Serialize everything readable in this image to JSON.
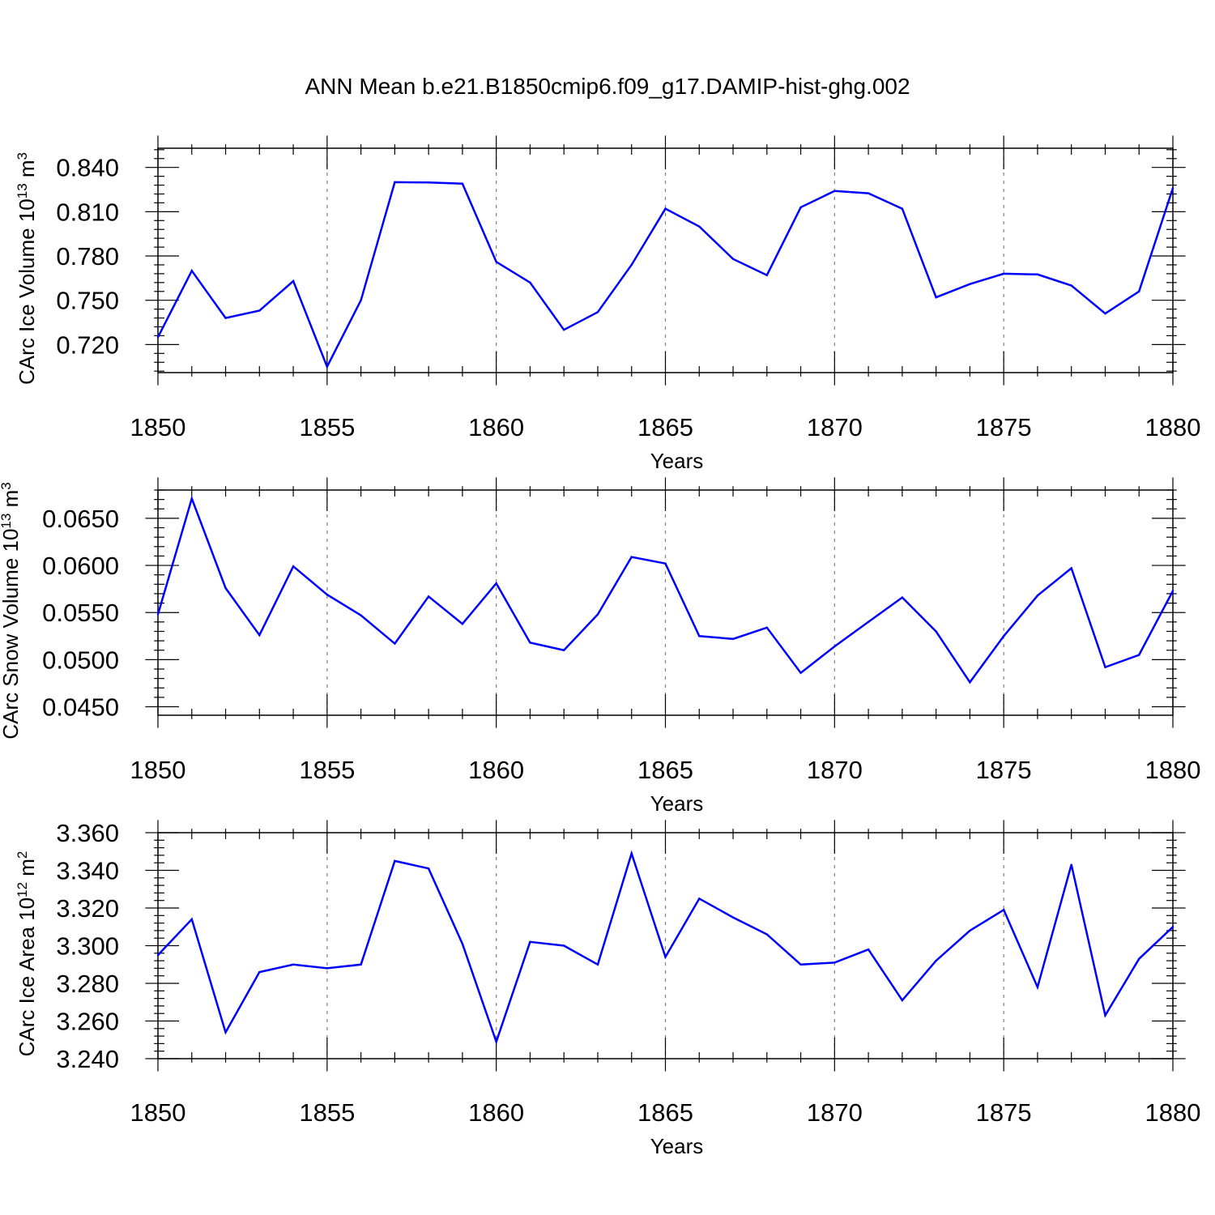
{
  "title": "ANN Mean b.e21.B1850cmip6.f09_g17.DAMIP-hist-ghg.002",
  "colors": {
    "line": "#0000ff",
    "axis": "#000000",
    "grid": "#808080"
  },
  "chart_data": [
    {
      "type": "line",
      "xlabel": "Years",
      "ylabel": {
        "base": "CArc Ice Volume 10",
        "exp": "13",
        "unit": " m",
        "unit_exp": "3"
      },
      "xlim": [
        1850,
        1880
      ],
      "ylim": [
        0.701,
        0.853
      ],
      "x_ticks": [
        1850,
        1855,
        1860,
        1865,
        1870,
        1875,
        1880
      ],
      "y_ticks": [
        "0.720",
        "0.750",
        "0.780",
        "0.810",
        "0.840"
      ],
      "grid": "vertical dashed at major x ticks",
      "x": [
        1850,
        1851,
        1852,
        1853,
        1854,
        1855,
        1856,
        1857,
        1858,
        1859,
        1860,
        1861,
        1862,
        1863,
        1864,
        1865,
        1866,
        1867,
        1868,
        1869,
        1870,
        1871,
        1872,
        1873,
        1874,
        1875,
        1876,
        1877,
        1878,
        1879,
        1880
      ],
      "values": [
        0.725,
        0.77,
        0.738,
        0.743,
        0.763,
        0.705,
        0.75,
        0.83,
        0.8298,
        0.829,
        0.776,
        0.762,
        0.73,
        0.742,
        0.774,
        0.812,
        0.8,
        0.778,
        0.767,
        0.813,
        0.824,
        0.8225,
        0.812,
        0.752,
        0.761,
        0.768,
        0.7675,
        0.76,
        0.741,
        0.756,
        0.826
      ]
    },
    {
      "type": "line",
      "xlabel": "Years",
      "ylabel": {
        "base": "CArc Snow Volume 10",
        "exp": "13",
        "unit": " m",
        "unit_exp": "3"
      },
      "xlim": [
        1850,
        1880
      ],
      "ylim": [
        0.0441,
        0.068
      ],
      "x_ticks": [
        1850,
        1855,
        1860,
        1865,
        1870,
        1875,
        1880
      ],
      "y_ticks": [
        "0.0450",
        "0.0500",
        "0.0550",
        "0.0600",
        "0.0650"
      ],
      "grid": "vertical dashed at major x ticks",
      "x": [
        1850,
        1851,
        1852,
        1853,
        1854,
        1855,
        1856,
        1857,
        1858,
        1859,
        1860,
        1861,
        1862,
        1863,
        1864,
        1865,
        1866,
        1867,
        1868,
        1869,
        1870,
        1871,
        1872,
        1873,
        1874,
        1875,
        1876,
        1877,
        1878,
        1879,
        1880
      ],
      "values": [
        0.0548,
        0.0671,
        0.0576,
        0.0526,
        0.0599,
        0.0569,
        0.0547,
        0.0517,
        0.0567,
        0.0538,
        0.0581,
        0.0518,
        0.051,
        0.0548,
        0.0609,
        0.0602,
        0.0525,
        0.0522,
        0.0534,
        0.0486,
        0.0514,
        0.054,
        0.0566,
        0.053,
        0.0476,
        0.0525,
        0.0568,
        0.0597,
        0.0492,
        0.0505,
        0.0573
      ]
    },
    {
      "type": "line",
      "xlabel": "Years",
      "ylabel": {
        "base": "CArc Ice Area 10",
        "exp": "12",
        "unit": " m",
        "unit_exp": "2"
      },
      "xlim": [
        1850,
        1880
      ],
      "ylim": [
        3.24,
        3.36
      ],
      "x_ticks": [
        1850,
        1855,
        1860,
        1865,
        1870,
        1875,
        1880
      ],
      "y_ticks": [
        "3.240",
        "3.260",
        "3.280",
        "3.300",
        "3.320",
        "3.340",
        "3.360"
      ],
      "grid": "vertical dashed at major x ticks",
      "x": [
        1850,
        1851,
        1852,
        1853,
        1854,
        1855,
        1856,
        1857,
        1858,
        1859,
        1860,
        1861,
        1862,
        1863,
        1864,
        1865,
        1866,
        1867,
        1868,
        1869,
        1870,
        1871,
        1872,
        1873,
        1874,
        1875,
        1876,
        1877,
        1878,
        1879,
        1880
      ],
      "values": [
        3.295,
        3.314,
        3.254,
        3.286,
        3.29,
        3.288,
        3.29,
        3.345,
        3.341,
        3.301,
        3.249,
        3.302,
        3.3,
        3.29,
        3.349,
        3.294,
        3.325,
        3.315,
        3.306,
        3.29,
        3.291,
        3.298,
        3.271,
        3.292,
        3.308,
        3.319,
        3.278,
        3.343,
        3.263,
        3.293,
        3.31
      ]
    }
  ]
}
